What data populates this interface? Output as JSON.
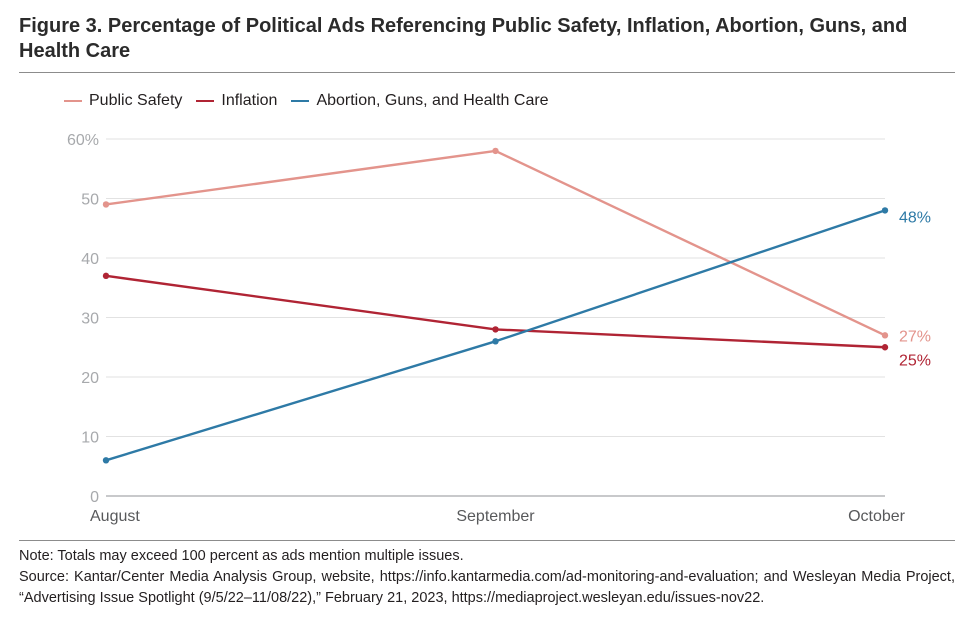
{
  "title": "Figure 3. Percentage of Political Ads Referencing Public Safety, Inflation, Abortion, Guns, and Health Care",
  "note": "Note: Totals may exceed 100 percent as ads mention multiple issues.",
  "source": "Source: Kantar/Center Media Analysis Group, website, https://info.kantarmedia.com/ad-monitoring-and-evaluation; and Wesleyan Media Project, “Advertising Issue Spotlight (9/5/22–11/08/22),” February 21, 2023, https://mediaproject.wesleyan.edu/issues-nov22.",
  "chart_data": {
    "type": "line",
    "title": "Figure 3. Percentage of Political Ads Referencing Public Safety, Inflation, Abortion, Guns, and Health Care",
    "xlabel": "",
    "ylabel": "",
    "categories": [
      "August",
      "September",
      "October"
    ],
    "ylim": [
      0,
      60
    ],
    "yticks": [
      0,
      10,
      20,
      30,
      40,
      50,
      60
    ],
    "ytick_labels": [
      "0",
      "10",
      "20",
      "30",
      "40",
      "50",
      "60%"
    ],
    "grid": true,
    "legend_position": "top-left",
    "series": [
      {
        "name": "Public Safety",
        "color": "#e3948c",
        "values": [
          49,
          58,
          27
        ],
        "end_label": "27%"
      },
      {
        "name": "Inflation",
        "color": "#b02434",
        "values": [
          37,
          28,
          25
        ],
        "end_label": "25%"
      },
      {
        "name": "Abortion, Guns, and Health Care",
        "color": "#2e7aa6",
        "values": [
          6,
          26,
          48
        ],
        "end_label": "48%"
      }
    ]
  }
}
